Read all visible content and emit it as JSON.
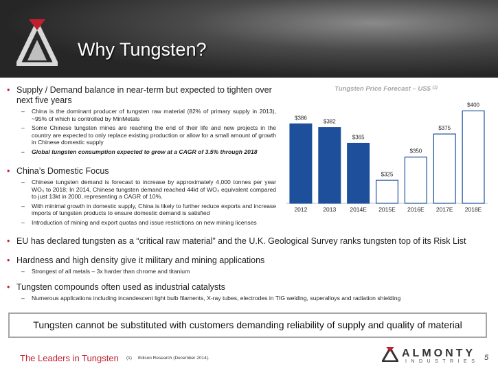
{
  "header": {
    "title": "Why Tungsten?"
  },
  "bullets": [
    {
      "text": "Supply / Demand balance in near-term but expected to tighten over next five years",
      "subs": [
        "China is the dominant producer of tungsten raw material (82% of primary supply in 2013), ~95% of which is controlled by MinMetals",
        "Some Chinese tungsten mines are reaching the end of their life and new projects in the country are expected to only replace existing production or allow for a small amount of growth in Chinese domestic supply",
        "Global tungsten consumption expected to grow at a CAGR of 3.5% through 2018"
      ]
    },
    {
      "text": "China’s Domestic Focus",
      "subs": [
        "Chinese tungsten demand is forecast to increase by approximately 4,000 tonnes per year WO₃ to 2018; In 2014, Chinese tungsten demand reached 44kt of WO₃ equivalent compared to just 13kt in 2000, representing a CAGR of 10%.",
        "With minimal growth in domestic supply, China is likely to further reduce exports and increase imports of tungsten products to ensure domestic demand is satisfied",
        "Introduction of mining and export quotas and issue restrictions on new mining licenses"
      ]
    },
    {
      "text": "EU has declared tungsten as a “critical raw material” and the U.K. Geological Survey ranks tungsten top of its Risk List",
      "subs": []
    },
    {
      "text": "Hardness and high density give it military and mining applications",
      "subs": [
        "Strongest of all metals – 3x harder than chrome and titanium"
      ]
    },
    {
      "text": "Tungsten compounds often used as industrial catalysts",
      "subs": [
        "Numerous applications including incandescent light bulb filaments, X-ray tubes, electrodes in TIG welding, superalloys and radiation shielding"
      ]
    }
  ],
  "chart_data": {
    "type": "bar",
    "title": "Tungsten Price Forecast – US$",
    "title_note": "(1)",
    "categories": [
      "2012",
      "2013",
      "2014E",
      "2015E",
      "2016E",
      "2017E",
      "2018E"
    ],
    "values": [
      386,
      382,
      365,
      325,
      350,
      375,
      400
    ],
    "value_labels": [
      "$386",
      "$382",
      "$365",
      "$325",
      "$350",
      "$375",
      "$400"
    ],
    "colors": [
      "#1d4f9b",
      "#1d4f9b",
      "#1d4f9b",
      "#ffffff",
      "#ffffff",
      "#ffffff",
      "#ffffff"
    ],
    "edgecolor": "#1d4f9b",
    "ylim": [
      300,
      410
    ]
  },
  "callout": "Tungsten cannot be substituted with customers demanding reliability of supply and quality of material",
  "footer": {
    "tagline": "The Leaders in Tungsten",
    "footnote_marker": "(1)",
    "footnote": "Edison Research (December 2014).",
    "logo": "ALMONTY",
    "logo_sub": "INDUSTRIES",
    "page": 5
  }
}
